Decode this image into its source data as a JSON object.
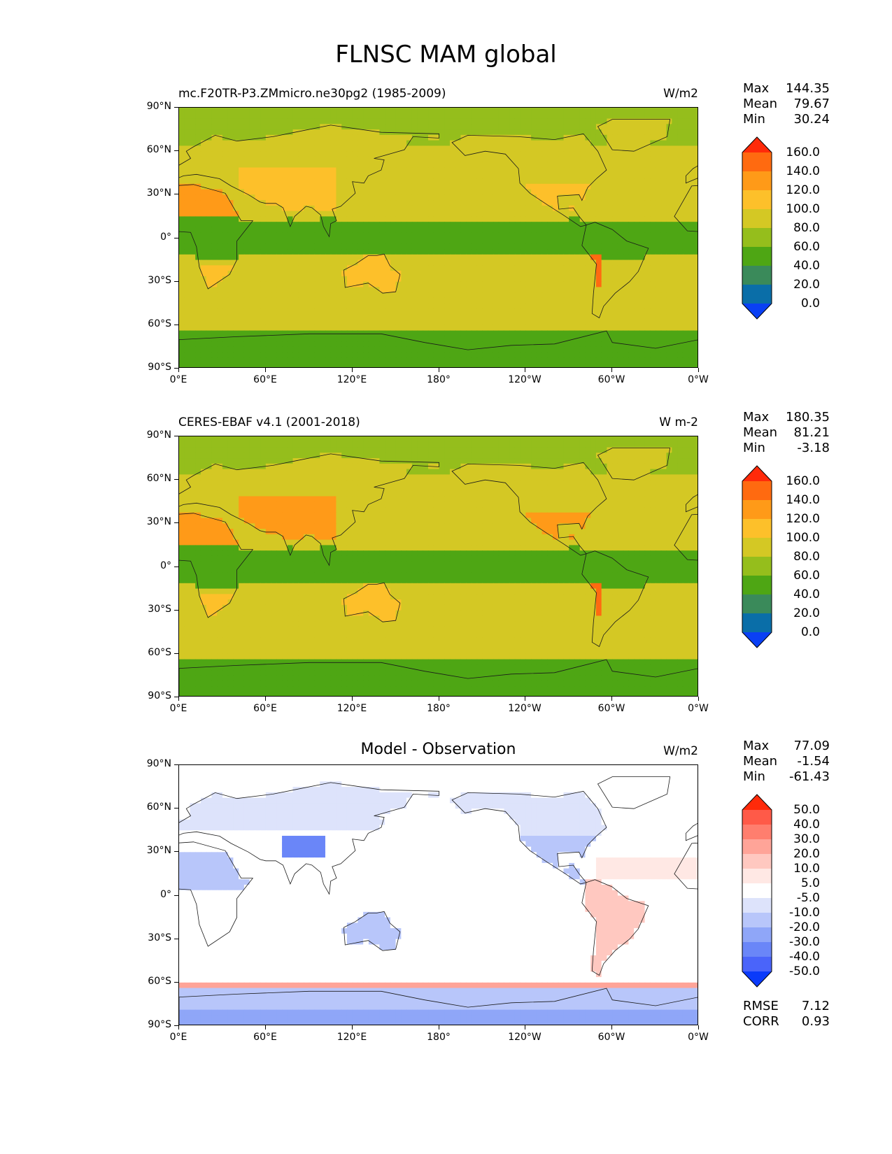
{
  "title": "FLNSC MAM global",
  "lat_labels": [
    "90°N",
    "60°N",
    "30°N",
    "0°",
    "30°S",
    "60°S",
    "90°S"
  ],
  "lon_labels": [
    "0°E",
    "60°E",
    "120°E",
    "180°",
    "120°W",
    "60°W",
    "0°W"
  ],
  "panels": [
    {
      "title": "mc.F20TR-P3.ZMmicro.ne30pg2 (1985-2009)",
      "units": "W/m2",
      "stats": [
        {
          "label": "Max",
          "value": "144.35"
        },
        {
          "label": "Mean",
          "value": "79.67"
        },
        {
          "label": "Min",
          "value": "30.24"
        }
      ],
      "colorbar": {
        "labels": [
          "160.0",
          "140.0",
          "120.0",
          "100.0",
          "80.0",
          "60.0",
          "40.0",
          "20.0",
          "0.0"
        ],
        "colors": [
          "#ff2a0a",
          "#ff6a10",
          "#ff9a18",
          "#fdc02a",
          "#d4c824",
          "#95be1c",
          "#4ea614",
          "#3a8a5a",
          "#0a6ea8",
          "#0a40f4"
        ]
      }
    },
    {
      "title": "CERES-EBAF v4.1 (2001-2018)",
      "units": "W m-2",
      "stats": [
        {
          "label": "Max",
          "value": "180.35"
        },
        {
          "label": "Mean",
          "value": "81.21"
        },
        {
          "label": "Min",
          "value": "-3.18"
        }
      ],
      "colorbar": {
        "labels": [
          "160.0",
          "140.0",
          "120.0",
          "100.0",
          "80.0",
          "60.0",
          "40.0",
          "20.0",
          "0.0"
        ],
        "colors": [
          "#ff2a0a",
          "#ff6a10",
          "#ff9a18",
          "#fdc02a",
          "#d4c824",
          "#95be1c",
          "#4ea614",
          "#3a8a5a",
          "#0a6ea8",
          "#0a40f4"
        ]
      }
    },
    {
      "title": "Model - Observation",
      "units": "W/m2",
      "stats": [
        {
          "label": "Max",
          "value": "77.09"
        },
        {
          "label": "Mean",
          "value": "-1.54"
        },
        {
          "label": "Min",
          "value": "-61.43"
        }
      ],
      "extra_stats": [
        {
          "label": "RMSE",
          "value": "7.12"
        },
        {
          "label": "CORR",
          "value": "0.93"
        }
      ],
      "colorbar": {
        "labels": [
          "50.0",
          "40.0",
          "30.0",
          "20.0",
          "10.0",
          "5.0",
          "-5.0",
          "-10.0",
          "-20.0",
          "-30.0",
          "-40.0",
          "-50.0"
        ],
        "colors": [
          "#ff2a0a",
          "#ff5a48",
          "#ff7e6e",
          "#ffa498",
          "#ffc8c0",
          "#ffe8e4",
          "#ffffff",
          "#dde3fb",
          "#b8c6fa",
          "#8fa6f8",
          "#6a86f8",
          "#4a64fa",
          "#0a3afa"
        ]
      }
    }
  ]
}
